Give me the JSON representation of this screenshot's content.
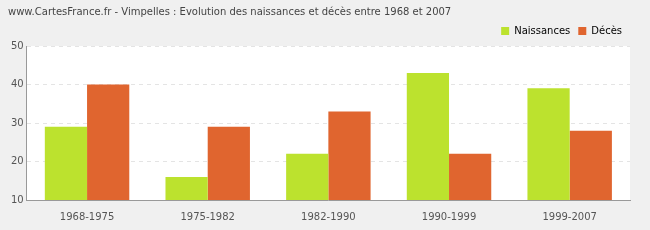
{
  "chart_data": {
    "type": "bar",
    "title": "www.CartesFrance.fr - Vimpelles : Evolution des naissances et décès entre 1968 et 2007",
    "categories": [
      "1968-1975",
      "1975-1982",
      "1982-1990",
      "1990-1999",
      "1999-2007"
    ],
    "series": [
      {
        "name": "Naissances",
        "color": "#bce22e",
        "values": [
          29,
          16,
          22,
          43,
          39
        ]
      },
      {
        "name": "Décès",
        "color": "#e0652f",
        "values": [
          40,
          29,
          33,
          22,
          28
        ]
      }
    ],
    "ylim": [
      10,
      50
    ],
    "yticks": [
      10,
      20,
      30,
      40,
      50
    ],
    "grid": true,
    "legend": "upper right"
  }
}
